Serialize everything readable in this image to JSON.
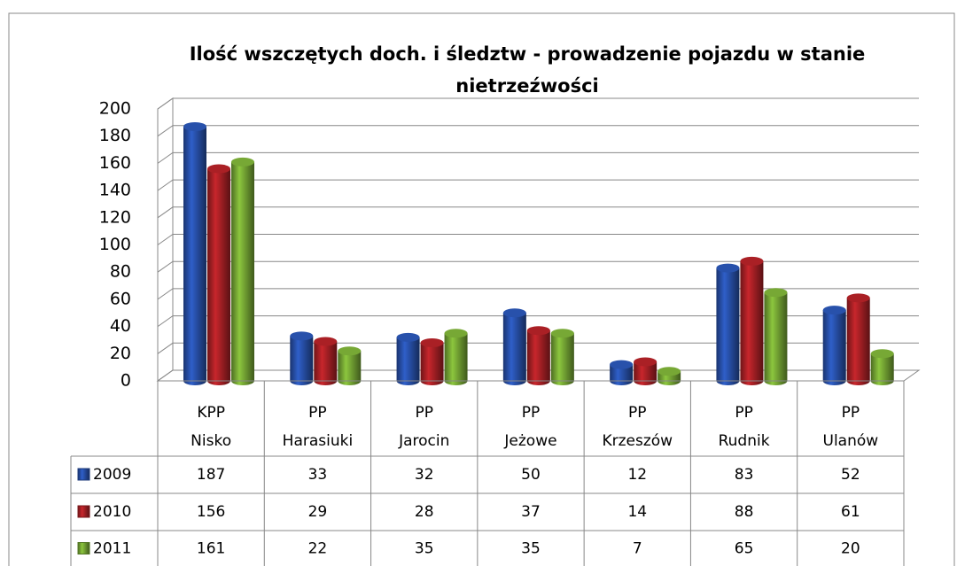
{
  "chart_data": {
    "type": "bar",
    "title": [
      "Ilość wszczętych doch. i śledztw - prowadzenie  pojazdu w stanie",
      "nietrzeźwości"
    ],
    "categories": [
      [
        "KPP",
        "Nisko"
      ],
      [
        "PP",
        "Harasiuki"
      ],
      [
        "PP",
        "Jarocin"
      ],
      [
        "PP",
        "Jeżowe"
      ],
      [
        "PP",
        "Krzeszów"
      ],
      [
        "PP",
        "Rudnik"
      ],
      [
        "PP",
        "Ulanów"
      ]
    ],
    "series": [
      {
        "name": "2009",
        "color": "#2f5fc9",
        "values": [
          187,
          33,
          32,
          50,
          12,
          83,
          52
        ]
      },
      {
        "name": "2010",
        "color": "#c8262c",
        "values": [
          156,
          29,
          28,
          37,
          14,
          88,
          61
        ]
      },
      {
        "name": "2011",
        "color": "#8cc63e",
        "values": [
          161,
          22,
          35,
          35,
          7,
          65,
          20
        ]
      }
    ],
    "ylim": [
      0,
      200
    ],
    "yticks": [
      0,
      20,
      40,
      60,
      80,
      100,
      120,
      140,
      160,
      180,
      200
    ],
    "grid": true
  }
}
